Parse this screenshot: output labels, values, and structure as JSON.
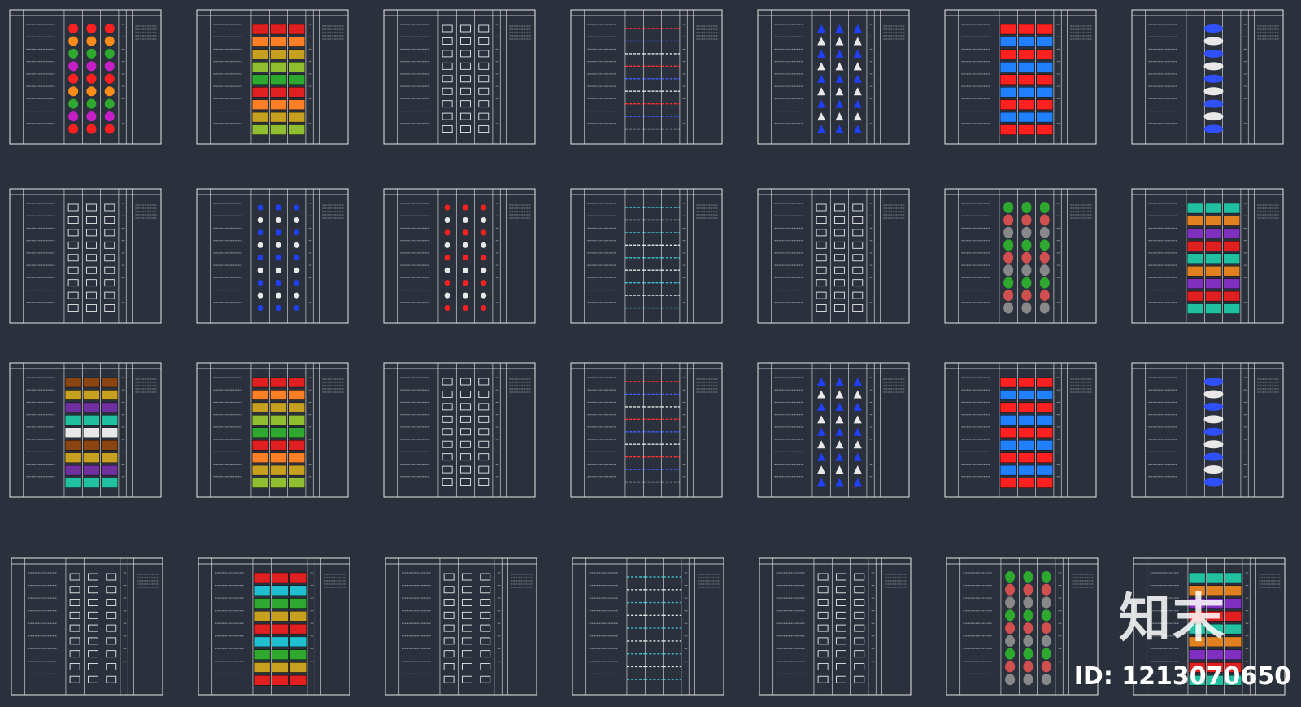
{
  "colors": {
    "background": "#2b313c",
    "sheet_line": "#e8e8e8",
    "text": "#d9d9d9"
  },
  "watermark": {
    "brand": "知末",
    "id_text": "ID: 1213070650"
  },
  "sheets": [
    {
      "name": "sheet-1-1",
      "palette": [
        "#ff2020",
        "#ff8c1a",
        "#2ea82e",
        "#c71fc7"
      ],
      "style": "circles"
    },
    {
      "name": "sheet-1-2",
      "palette": [
        "#e02020",
        "#ff7f27",
        "#c8a020",
        "#8fbf30",
        "#2ea82e"
      ],
      "style": "hatch"
    },
    {
      "name": "sheet-1-3",
      "palette": [
        "#e8e8e8"
      ],
      "style": "symbols"
    },
    {
      "name": "sheet-1-4",
      "palette": [
        "#ff3030",
        "#4060ff",
        "#e8e8e8"
      ],
      "style": "lines"
    },
    {
      "name": "sheet-1-5",
      "palette": [
        "#2040ff",
        "#e8e8e8"
      ],
      "style": "blue"
    },
    {
      "name": "sheet-1-6",
      "palette": [
        "#ff2020",
        "#2080ff"
      ],
      "style": "redbars"
    },
    {
      "name": "sheet-1-7",
      "palette": [
        "#3050ff",
        "#e8e8e8"
      ],
      "style": "ovals"
    },
    {
      "name": "sheet-2-1",
      "palette": [
        "#e8e8e8"
      ],
      "style": "symbols"
    },
    {
      "name": "sheet-2-2",
      "palette": [
        "#2040ff",
        "#e8e8e8"
      ],
      "style": "dots"
    },
    {
      "name": "sheet-2-3",
      "palette": [
        "#ff2020",
        "#e8e8e8"
      ],
      "style": "reddots"
    },
    {
      "name": "sheet-2-4",
      "palette": [
        "#40c0d0",
        "#e8e8e8"
      ],
      "style": "lines"
    },
    {
      "name": "sheet-2-5",
      "palette": [
        "#e8e8e8"
      ],
      "style": "symbols"
    },
    {
      "name": "sheet-2-6",
      "palette": [
        "#2ea82e",
        "#d05050",
        "#888888"
      ],
      "style": "green"
    },
    {
      "name": "sheet-2-7",
      "palette": [
        "#20c0a0",
        "#e08020",
        "#8030c0",
        "#e02020"
      ],
      "style": "mixed"
    },
    {
      "name": "sheet-3-1",
      "palette": [
        "#8b4513",
        "#c8a020",
        "#7030a0",
        "#20c0a0",
        "#e8e8e8"
      ],
      "style": "hatch"
    },
    {
      "name": "sheet-3-2",
      "palette": [
        "#e02020",
        "#ff7f27",
        "#c8a020",
        "#8fbf30",
        "#2ea82e"
      ],
      "style": "hatch"
    },
    {
      "name": "sheet-3-3",
      "palette": [
        "#e8e8e8"
      ],
      "style": "symbols"
    },
    {
      "name": "sheet-3-4",
      "palette": [
        "#ff3030",
        "#4060ff",
        "#e8e8e8"
      ],
      "style": "lines"
    },
    {
      "name": "sheet-3-5",
      "palette": [
        "#2040ff",
        "#e8e8e8"
      ],
      "style": "blue"
    },
    {
      "name": "sheet-3-6",
      "palette": [
        "#ff2020",
        "#2080ff"
      ],
      "style": "redbars"
    },
    {
      "name": "sheet-3-7",
      "palette": [
        "#3050ff",
        "#e8e8e8"
      ],
      "style": "ovals"
    },
    {
      "name": "sheet-4-1",
      "palette": [
        "#e8e8e8"
      ],
      "style": "symbols"
    },
    {
      "name": "sheet-4-2",
      "palette": [
        "#e02020",
        "#20c0d0",
        "#2ea82e",
        "#c8a020"
      ],
      "style": "hatch"
    },
    {
      "name": "sheet-4-3",
      "palette": [
        "#e8e8e8"
      ],
      "style": "symbols"
    },
    {
      "name": "sheet-4-4",
      "palette": [
        "#40c0d0",
        "#e8e8e8"
      ],
      "style": "lines"
    },
    {
      "name": "sheet-4-5",
      "palette": [
        "#e8e8e8"
      ],
      "style": "symbols"
    },
    {
      "name": "sheet-4-6",
      "palette": [
        "#2ea82e",
        "#d05050",
        "#888888"
      ],
      "style": "green"
    },
    {
      "name": "sheet-4-7",
      "palette": [
        "#20c0a0",
        "#e08020",
        "#8030c0",
        "#e02020"
      ],
      "style": "mixed"
    }
  ]
}
